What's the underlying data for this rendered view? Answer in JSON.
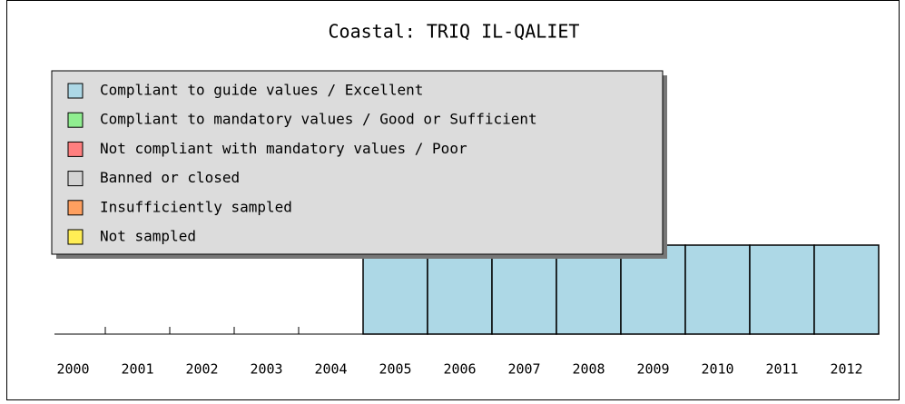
{
  "chart_data": {
    "type": "bar",
    "stacked": true,
    "title": "Coastal: TRIQ IL-QALIET",
    "categories": [
      "2000",
      "2001",
      "2002",
      "2003",
      "2004",
      "2005",
      "2006",
      "2007",
      "2008",
      "2009",
      "2010",
      "2011",
      "2012"
    ],
    "ylim": [
      0,
      1
    ],
    "series": [
      {
        "name": "Compliant to guide values / Excellent",
        "color": "#add8e6",
        "values": [
          null,
          null,
          null,
          null,
          null,
          1,
          1,
          1,
          1,
          1,
          1,
          1,
          1
        ]
      },
      {
        "name": "Compliant to mandatory values / Good or Sufficient",
        "color": "#90ee90",
        "values": [
          null,
          null,
          null,
          null,
          null,
          null,
          null,
          null,
          null,
          null,
          null,
          null,
          null
        ]
      },
      {
        "name": "Not compliant with mandatory values / Poor",
        "color": "#ff7f7f",
        "values": [
          null,
          null,
          null,
          null,
          null,
          null,
          null,
          null,
          null,
          null,
          null,
          null,
          null
        ]
      },
      {
        "name": "Banned or closed",
        "color": "#d3d3d3",
        "values": [
          null,
          null,
          null,
          null,
          null,
          null,
          null,
          null,
          null,
          null,
          null,
          null,
          null
        ]
      },
      {
        "name": "Insufficiently sampled",
        "color": "#ffa060",
        "values": [
          null,
          null,
          null,
          null,
          null,
          null,
          null,
          null,
          null,
          null,
          null,
          null,
          null
        ]
      },
      {
        "name": "Not sampled",
        "color": "#ffee55",
        "values": [
          null,
          null,
          null,
          null,
          null,
          null,
          null,
          null,
          null,
          null,
          null,
          null,
          null
        ]
      }
    ],
    "legend": "upper left"
  }
}
